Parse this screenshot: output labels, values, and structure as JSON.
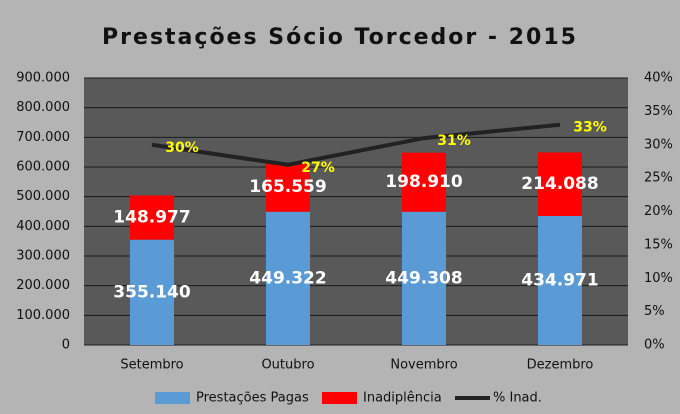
{
  "chart_data": {
    "type": "bar",
    "stacked": true,
    "title": "Prestações Sócio Torcedor - 2015",
    "categories": [
      "Setembro",
      "Outubro",
      "Novembro",
      "Dezembro"
    ],
    "series": [
      {
        "name": "Prestações Pagas",
        "color": "#5b9bd5",
        "values": [
          355140,
          449322,
          449308,
          434971
        ],
        "value_labels": [
          "355.140",
          "449.322",
          "449.308",
          "434.971"
        ]
      },
      {
        "name": "Inadiplência",
        "color": "#ff0000",
        "values": [
          148977,
          165559,
          198910,
          214088
        ],
        "value_labels": [
          "148.977",
          "165.559",
          "198.910",
          "214.088"
        ]
      },
      {
        "name": "% Inad.",
        "type": "line",
        "axis": "y2",
        "color": "#222222",
        "values": [
          30,
          27,
          31,
          33
        ],
        "value_labels": [
          "30%",
          "27%",
          "31%",
          "33%"
        ]
      }
    ],
    "ylim": [
      0,
      900000
    ],
    "yticks": [
      0,
      {
        "value": 100000,
        "label": "100.000"
      },
      {
        "value": 200000,
        "label": "200.000"
      },
      {
        "value": 300000,
        "label": "300.000"
      },
      {
        "value": 400000,
        "label": "400.000"
      },
      {
        "value": 500000,
        "label": "500.000"
      },
      {
        "value": 600000,
        "label": "600.000"
      },
      {
        "value": 700000,
        "label": "700.000"
      },
      {
        "value": 800000,
        "label": "800.000"
      },
      {
        "value": 900000,
        "label": "900.000"
      }
    ],
    "y2lim": [
      0,
      40
    ],
    "y2ticks": [
      {
        "value": 0,
        "label": "0%"
      },
      {
        "value": 5,
        "label": "5%"
      },
      {
        "value": 10,
        "label": "10%"
      },
      {
        "value": 15,
        "label": "15%"
      },
      {
        "value": 20,
        "label": "20%"
      },
      {
        "value": 25,
        "label": "25%"
      },
      {
        "value": 30,
        "label": "30%"
      },
      {
        "value": 35,
        "label": "35%"
      },
      {
        "value": 40,
        "label": "40%"
      }
    ],
    "grid": true,
    "legend": "bottom"
  }
}
